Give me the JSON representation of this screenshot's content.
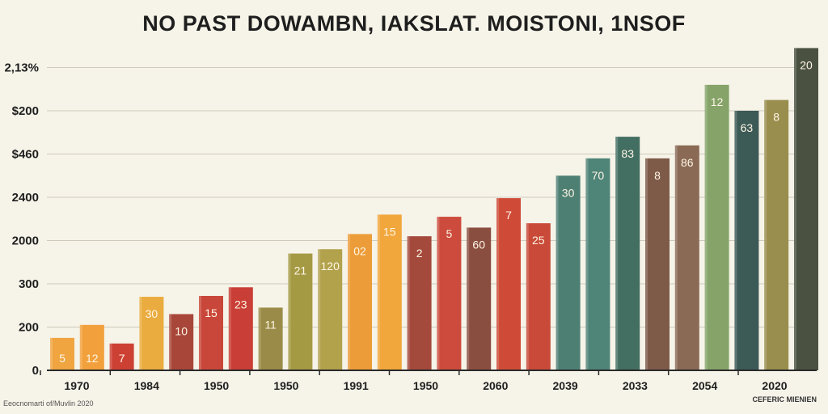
{
  "chart_data": {
    "type": "bar",
    "title": "NO PAST DOWAMBN, IAKSLAT. MOISTONI, 1NSOF",
    "ytick_labels": [
      "0",
      "200",
      "300",
      "2000",
      "2400",
      "$460",
      "$200",
      "2,13%"
    ],
    "xtick_labels": [
      "1970",
      "1984",
      "1950",
      "1950",
      "1991",
      "1950",
      "2060",
      "2039",
      "2033",
      "2054",
      "2020"
    ],
    "bar_heights_in_gridlines": [
      0.75,
      1.05,
      0.62,
      1.7,
      1.3,
      1.72,
      1.92,
      1.45,
      2.7,
      2.8,
      3.15,
      3.6,
      3.1,
      3.55,
      3.3,
      3.98,
      3.4,
      4.5,
      4.9,
      5.4,
      4.9,
      5.2,
      6.6,
      6.0,
      6.25,
      7.45
    ],
    "bar_labels": [
      "5",
      "12",
      "7",
      "30",
      "10",
      "15",
      "23",
      "11",
      "21",
      "120",
      "02",
      "15",
      "2",
      "5",
      "60",
      "7",
      "25",
      "30",
      "70",
      "83",
      "8",
      "86",
      "12",
      "63",
      "8",
      "20"
    ],
    "colors": [
      "#f0a540",
      "#f2a03c",
      "#cd4034",
      "#eaac3f",
      "#a8463a",
      "#c9473a",
      "#c93e36",
      "#9a8c48",
      "#a59a44",
      "#b2a24c",
      "#ec9c38",
      "#f1a73c",
      "#a44a3c",
      "#cc4b3c",
      "#8a4e40",
      "#cf4b38",
      "#c94a38",
      "#4e7f73",
      "#4f8478",
      "#436f62",
      "#7e5a48",
      "#8a6a55",
      "#86a46a",
      "#3c5a56",
      "#9a8e4e",
      "#4a5140"
    ],
    "legend": "none",
    "grid": true
  },
  "source": "Eeocnomarti of/Muvlin 2020",
  "note": "CEFERIC MIENIEN"
}
